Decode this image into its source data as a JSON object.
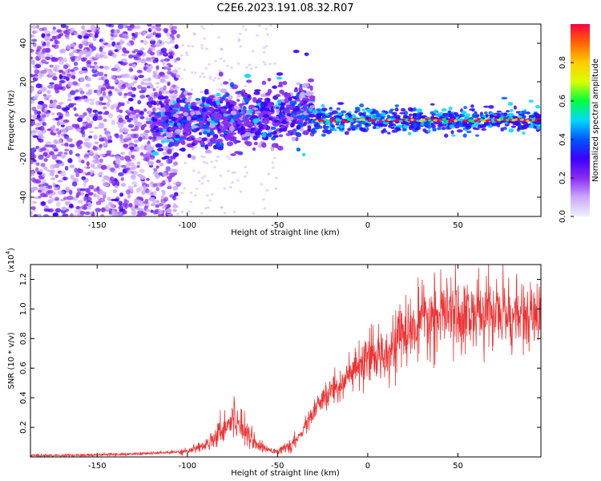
{
  "title": "C2E6.2023.191.08.32.R07",
  "colors": {
    "snr_line": "#ee3333",
    "colormap": [
      "#f0f0ff",
      "#caa8ff",
      "#8a2cf0",
      "#3b00ff",
      "#0055ff",
      "#00d8ff",
      "#00ff40",
      "#d8ff00",
      "#ffcc00",
      "#ff6600",
      "#ff0044"
    ]
  },
  "chart_data": [
    {
      "type": "heatmap",
      "description_of_axes": "spectrogram of frequency vs height",
      "xlabel": "Height of straight line (km)",
      "ylabel": "Frequency (Hz)",
      "xlim": [
        -187,
        96
      ],
      "ylim": [
        -50,
        50
      ],
      "xticks": [
        -150,
        -100,
        -50,
        0,
        50
      ],
      "yticks": [
        -40,
        -20,
        0,
        20,
        40
      ],
      "grid": false,
      "colorbar": {
        "label": "Normalized spectral amplitude",
        "range": [
          0,
          1
        ],
        "ticks": [
          "0.0",
          "0.2",
          "0.4",
          "0.6",
          "0.8"
        ]
      },
      "features": [
        {
          "x_range": [
            -187,
            -120
          ],
          "frequency_spread": "broadband noise, -50 to 50 Hz",
          "amplitude": 0.1
        },
        {
          "x_range": [
            -120,
            -30
          ],
          "frequency_center": 0,
          "frequency_spread": 10,
          "amplitude": 0.35
        },
        {
          "x_range": [
            -30,
            96
          ],
          "frequency_center": 0,
          "frequency_spread": 3,
          "amplitude": 0.95
        }
      ]
    },
    {
      "type": "line",
      "xlabel": "Height of straight line (km)",
      "ylabel": "SNR (10 * v/v)",
      "yscale_label": "(x10",
      "yscale_exp": "4",
      "xlim": [
        -187,
        96
      ],
      "ylim": [
        0,
        1.3
      ],
      "xticks": [
        -150,
        -100,
        -50,
        0,
        50
      ],
      "yticks": [
        0.2,
        0.4,
        0.6,
        0.8,
        1.0,
        1.2
      ],
      "ytick_labels": [
        "0.2",
        "0.4",
        "0.6",
        "0.8",
        "1.0",
        "1.2"
      ],
      "grid": false,
      "series": [
        {
          "x": [
            -187,
            -170,
            -150,
            -130,
            -120,
            -110,
            -100,
            -90,
            -85,
            -80,
            -75,
            -72,
            -68,
            -65,
            -60,
            -55,
            -50,
            -45,
            -40,
            -35,
            -30,
            -25,
            -20,
            -15,
            -10,
            -5,
            0,
            5,
            10,
            15,
            20,
            25,
            30,
            35,
            40,
            45,
            50,
            55,
            60,
            65,
            70,
            75,
            80,
            85,
            90,
            96
          ],
          "y": [
            0.01,
            0.01,
            0.015,
            0.02,
            0.025,
            0.03,
            0.04,
            0.08,
            0.14,
            0.2,
            0.26,
            0.24,
            0.2,
            0.14,
            0.07,
            0.05,
            0.04,
            0.06,
            0.1,
            0.2,
            0.3,
            0.38,
            0.45,
            0.5,
            0.55,
            0.6,
            0.64,
            0.68,
            0.72,
            0.78,
            0.82,
            0.86,
            0.9,
            0.93,
            0.95,
            0.96,
            0.97,
            0.97,
            0.96,
            0.97,
            0.98,
            0.97,
            0.96,
            0.95,
            0.94,
            0.93
          ]
        }
      ]
    }
  ]
}
